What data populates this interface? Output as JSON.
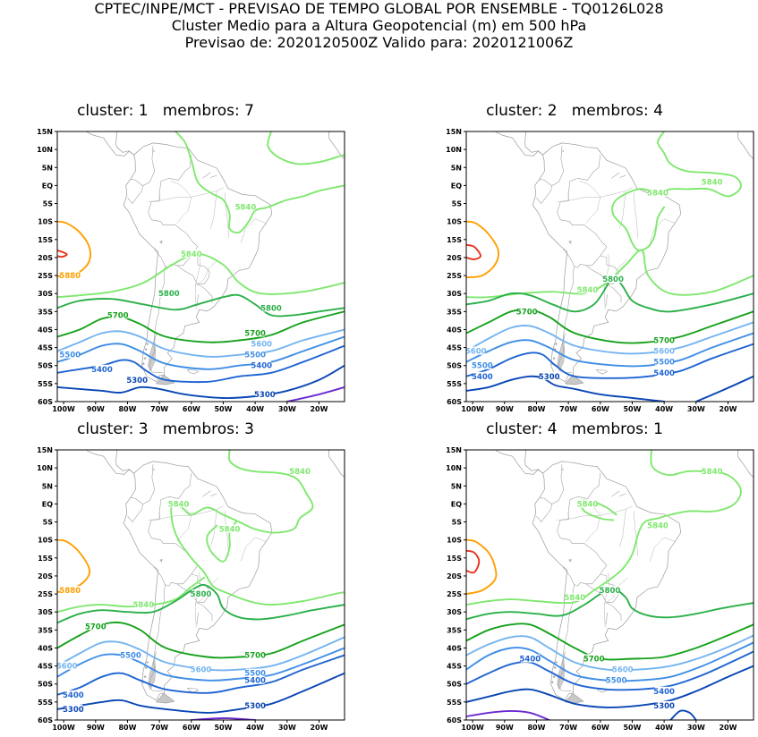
{
  "header": {
    "line1": "CPTEC/INPE/MCT - PREVISAO DE TEMPO GLOBAL POR ENSEMBLE - TQ0126L028",
    "line2": "Cluster Medio para a Altura Geopotencial (m) em 500 hPa",
    "line3": "Previsao de: 2020120500Z    Valido para: 2020121006Z"
  },
  "lat_ticks": [
    "15N",
    "10N",
    "5N",
    "EQ",
    "5S",
    "10S",
    "15S",
    "20S",
    "25S",
    "30S",
    "35S",
    "40S",
    "45S",
    "50S",
    "55S",
    "60S"
  ],
  "lon_ticks": [
    "100W",
    "90W",
    "80W",
    "70W",
    "60W",
    "50W",
    "40W",
    "30W",
    "20W"
  ],
  "colors": {
    "5880": "#ff9f00",
    "5900": "#e8321a",
    "5840": "#7fe86e",
    "5800": "#2bb04a",
    "5700": "#16a21c",
    "5600": "#74b4f0",
    "5500": "#3f8ee6",
    "5400": "#1f64d2",
    "5300": "#0a46b4",
    "5200": "#6a2ad0",
    "coast": "#9a9a9a"
  },
  "panels": [
    {
      "title": "cluster: 1   membros: 7",
      "labels": [
        {
          "text": "5880",
          "level": "5880",
          "lon": -98,
          "lat": -25
        },
        {
          "text": "5840",
          "level": "5840",
          "lon": -43,
          "lat": -6
        },
        {
          "text": "5840",
          "level": "5840",
          "lon": -60,
          "lat": -19
        },
        {
          "text": "5800",
          "level": "5800",
          "lon": -67,
          "lat": -30
        },
        {
          "text": "5800",
          "level": "5800",
          "lon": -35,
          "lat": -34
        },
        {
          "text": "5700",
          "level": "5700",
          "lon": -83,
          "lat": -36
        },
        {
          "text": "5700",
          "level": "5700",
          "lon": -40,
          "lat": -41
        },
        {
          "text": "5600",
          "level": "5600",
          "lon": -38,
          "lat": -44
        },
        {
          "text": "5500",
          "level": "5500",
          "lon": -98,
          "lat": -47
        },
        {
          "text": "5500",
          "level": "5500",
          "lon": -40,
          "lat": -47
        },
        {
          "text": "5400",
          "level": "5400",
          "lon": -88,
          "lat": -51
        },
        {
          "text": "5400",
          "level": "5400",
          "lon": -38,
          "lat": -50
        },
        {
          "text": "5300",
          "level": "5300",
          "lon": -77,
          "lat": -54
        },
        {
          "text": "5300",
          "level": "5300",
          "lon": -37,
          "lat": -58
        }
      ]
    },
    {
      "title": "cluster: 2   membros: 4",
      "labels": [
        {
          "text": "5840",
          "level": "5840",
          "lon": -25,
          "lat": 1
        },
        {
          "text": "5840",
          "level": "5840",
          "lon": -42,
          "lat": -2
        },
        {
          "text": "5840",
          "level": "5840",
          "lon": -64,
          "lat": -29
        },
        {
          "text": "5800",
          "level": "5800",
          "lon": -56,
          "lat": -26
        },
        {
          "text": "5700",
          "level": "5700",
          "lon": -83,
          "lat": -35
        },
        {
          "text": "5700",
          "level": "5700",
          "lon": -40,
          "lat": -43
        },
        {
          "text": "5600",
          "level": "5600",
          "lon": -99,
          "lat": -46
        },
        {
          "text": "5600",
          "level": "5600",
          "lon": -40,
          "lat": -46
        },
        {
          "text": "5500",
          "level": "5500",
          "lon": -97,
          "lat": -50
        },
        {
          "text": "5500",
          "level": "5500",
          "lon": -40,
          "lat": -49
        },
        {
          "text": "5400",
          "level": "5400",
          "lon": -97,
          "lat": -53
        },
        {
          "text": "5400",
          "level": "5400",
          "lon": -40,
          "lat": -52
        },
        {
          "text": "5300",
          "level": "5300",
          "lon": -76,
          "lat": -53
        }
      ]
    },
    {
      "title": "cluster: 3   membros: 3",
      "labels": [
        {
          "text": "5840",
          "level": "5840",
          "lon": -26,
          "lat": 9
        },
        {
          "text": "5840",
          "level": "5840",
          "lon": -64,
          "lat": 0
        },
        {
          "text": "5840",
          "level": "5840",
          "lon": -48,
          "lat": -7
        },
        {
          "text": "5880",
          "level": "5880",
          "lon": -98,
          "lat": -24
        },
        {
          "text": "5840",
          "level": "5840",
          "lon": -75,
          "lat": -28
        },
        {
          "text": "5800",
          "level": "5800",
          "lon": -57,
          "lat": -25
        },
        {
          "text": "5700",
          "level": "5700",
          "lon": -90,
          "lat": -34
        },
        {
          "text": "5700",
          "level": "5700",
          "lon": -40,
          "lat": -42
        },
        {
          "text": "5600",
          "level": "5600",
          "lon": -99,
          "lat": -45
        },
        {
          "text": "5600",
          "level": "5600",
          "lon": -57,
          "lat": -46
        },
        {
          "text": "5500",
          "level": "5500",
          "lon": -79,
          "lat": -42
        },
        {
          "text": "5500",
          "level": "5500",
          "lon": -40,
          "lat": -47
        },
        {
          "text": "5400",
          "level": "5400",
          "lon": -97,
          "lat": -53
        },
        {
          "text": "5400",
          "level": "5400",
          "lon": -40,
          "lat": -49
        },
        {
          "text": "5300",
          "level": "5300",
          "lon": -97,
          "lat": -57
        },
        {
          "text": "5300",
          "level": "5300",
          "lon": -40,
          "lat": -56
        }
      ]
    },
    {
      "title": "cluster: 4   membros: 1",
      "labels": [
        {
          "text": "5840",
          "level": "5840",
          "lon": -25,
          "lat": 9
        },
        {
          "text": "5840",
          "level": "5840",
          "lon": -64,
          "lat": 0
        },
        {
          "text": "5840",
          "level": "5840",
          "lon": -42,
          "lat": -6
        },
        {
          "text": "5840",
          "level": "5840",
          "lon": -68,
          "lat": -26
        },
        {
          "text": "5800",
          "level": "5800",
          "lon": -57,
          "lat": -24
        },
        {
          "text": "5700",
          "level": "5700",
          "lon": -62,
          "lat": -43
        },
        {
          "text": "5600",
          "level": "5600",
          "lon": -53,
          "lat": -46
        },
        {
          "text": "5500",
          "level": "5500",
          "lon": -55,
          "lat": -49
        },
        {
          "text": "5400",
          "level": "5400",
          "lon": -82,
          "lat": -43
        },
        {
          "text": "5400",
          "level": "5400",
          "lon": -40,
          "lat": -52
        },
        {
          "text": "5300",
          "level": "5300",
          "lon": -40,
          "lat": -56
        }
      ]
    }
  ]
}
